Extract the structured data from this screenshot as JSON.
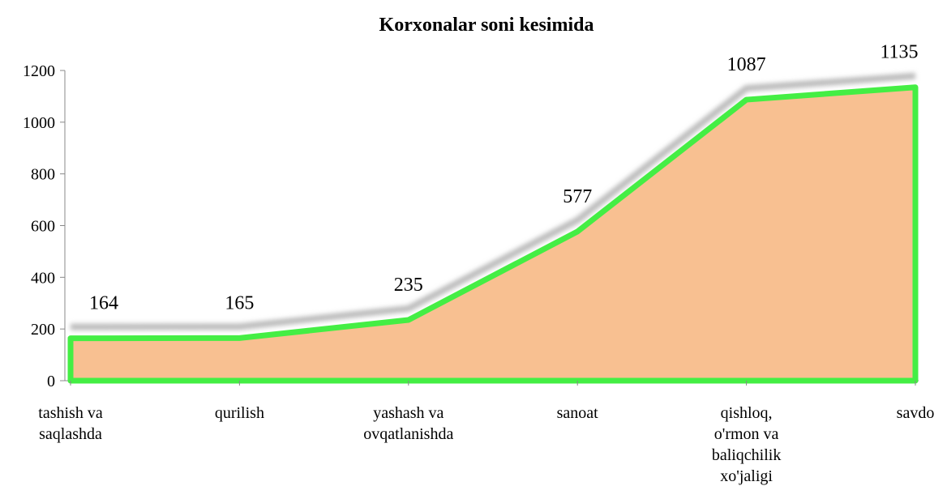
{
  "chart_data": {
    "type": "area",
    "title": "Korxonalar soni kesimida",
    "categories": [
      "tashish va saqlashda",
      "qurilish",
      "yashash va ovqatlanishda",
      "sanoat",
      "qishloq, o'rmon va baliqchilik xo'jaligi",
      "savdo"
    ],
    "values": [
      164,
      165,
      235,
      577,
      1087,
      1135
    ],
    "fill": "#f8c091",
    "line_color": "#44ee44",
    "ylim": [
      0,
      1200
    ],
    "yticks": [
      0,
      200,
      400,
      600,
      800,
      1000,
      1200
    ]
  }
}
